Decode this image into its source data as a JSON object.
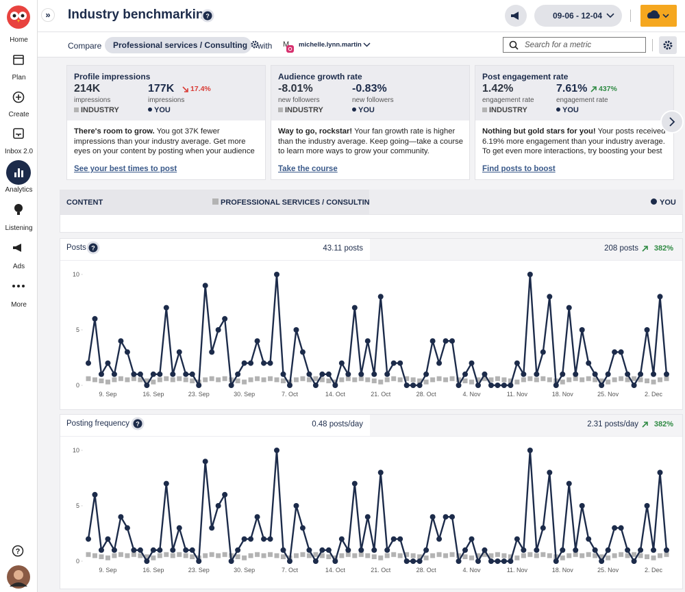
{
  "sidebar": {
    "items": [
      "Home",
      "Plan",
      "Create",
      "Inbox 2.0",
      "Analytics",
      "Listening",
      "Ads",
      "More"
    ]
  },
  "header": {
    "title": "Industry benchmarking",
    "date_range": "09-06 - 12-04"
  },
  "toolbar": {
    "compare": "Compare",
    "industry": "Professional services / Consulting",
    "with": "with",
    "account_initial": "M",
    "account": "michelle.lynn.martin",
    "search_placeholder": "Search for a metric"
  },
  "cards": [
    {
      "title": "Profile impressions",
      "industry_value": "214K",
      "industry_unit": "impressions",
      "industry_label": "INDUSTRY",
      "you_value": "177K",
      "you_change": "17.4%",
      "you_unit": "impressions",
      "you_label": "YOU",
      "body_bold": "There's room to grow.",
      "body": "You got 37K fewer impressions than your industry average. Get more eyes on your content by posting when your audience is online.",
      "link": "See your best times to post"
    },
    {
      "title": "Audience growth rate",
      "industry_value": "-8.01%",
      "industry_unit": "new followers",
      "industry_label": "INDUSTRY",
      "you_value": "-0.83%",
      "you_change": null,
      "you_unit": "new followers",
      "you_label": "YOU",
      "body_bold": "Way to go, rockstar!",
      "body": "Your fan growth rate is higher than the industry average. Keep going—take a course to learn more ways to grow your community.",
      "link": "Take the course"
    },
    {
      "title": "Post engagement rate",
      "industry_value": "1.42%",
      "industry_unit": "engagement rate",
      "industry_label": "INDUSTRY",
      "you_value": "7.61%",
      "you_change": "437%",
      "you_unit": "engagement rate",
      "you_label": "YOU",
      "body_bold": "Nothing but gold stars for you!",
      "body": "Your posts received 6.19% more engagement than your industry average. To get even more interactions, try boosting your best posts.",
      "link": "Find posts to boost"
    }
  ],
  "content_bar": {
    "content": "CONTENT",
    "industry": "PROFESSIONAL SERVICES / CONSULTING",
    "you": "YOU"
  },
  "charts": [
    {
      "type": "line",
      "title": "Posts",
      "industry_total": "43.11 posts",
      "you_total": "208 posts",
      "you_change": "382%",
      "categories": [
        null,
        null,
        null,
        "9. Sep",
        null,
        null,
        null,
        null,
        null,
        null,
        "16. Sep",
        null,
        null,
        null,
        null,
        null,
        null,
        "23. Sep",
        null,
        null,
        null,
        null,
        null,
        null,
        "30. Sep",
        null,
        null,
        null,
        null,
        null,
        null,
        "7. Oct",
        null,
        null,
        null,
        null,
        null,
        null,
        "14. Oct",
        null,
        null,
        null,
        null,
        null,
        null,
        "21. Oct",
        null,
        null,
        null,
        null,
        null,
        null,
        "28. Oct",
        null,
        null,
        null,
        null,
        null,
        null,
        "4. Nov",
        null,
        null,
        null,
        null,
        null,
        null,
        "11. Nov",
        null,
        null,
        null,
        null,
        null,
        null,
        "18. Nov",
        null,
        null,
        null,
        null,
        null,
        null,
        "25. Nov",
        null,
        null,
        null,
        null,
        null,
        null,
        "2. Dec",
        null,
        null
      ],
      "series": [
        {
          "color": "#b3b3b3",
          "values": [
            0.6,
            0.5,
            0.4,
            0.3,
            0.5,
            0.6,
            0.5,
            0.6,
            0.5,
            0.4,
            0.3,
            0.5,
            0.6,
            0.5,
            0.6,
            0.5,
            0.4,
            0.3,
            0.5,
            0.6,
            0.5,
            0.6,
            0.5,
            0.4,
            0.3,
            0.5,
            0.6,
            0.5,
            0.6,
            0.5,
            0.4,
            0.3,
            0.5,
            0.6,
            0.5,
            0.6,
            0.5,
            0.4,
            0.3,
            0.5,
            0.6,
            0.5,
            0.6,
            0.5,
            0.4,
            0.3,
            0.5,
            0.6,
            0.5,
            0.6,
            0.5,
            0.4,
            0.3,
            0.5,
            0.6,
            0.5,
            0.6,
            0.5,
            0.4,
            0.3,
            0.5,
            0.6,
            0.5,
            0.6,
            0.5,
            0.4,
            0.3,
            0.5,
            0.6,
            0.5,
            0.6,
            0.5,
            0.4,
            0.3,
            0.5,
            0.6,
            0.5,
            0.6,
            0.5,
            0.4,
            0.3,
            0.5,
            0.6,
            0.5,
            0.6,
            0.5,
            0.4,
            0.3,
            0.5,
            0.6
          ]
        },
        {
          "color": "#1c2b4a",
          "values": [
            2,
            6,
            1,
            2,
            1,
            4,
            3,
            1,
            1,
            0,
            1,
            1,
            7,
            1,
            3,
            1,
            1,
            0,
            9,
            3,
            5,
            6,
            0,
            1,
            2,
            2,
            4,
            2,
            2,
            10,
            1,
            0,
            5,
            3,
            1,
            0,
            1,
            1,
            0,
            2,
            1,
            7,
            1,
            4,
            1,
            8,
            1,
            2,
            2,
            0,
            0,
            0,
            1,
            4,
            2,
            4,
            4,
            0,
            1,
            2,
            0,
            1,
            0,
            0,
            0,
            0,
            2,
            1,
            10,
            1,
            3,
            8,
            0,
            1,
            7,
            1,
            5,
            2,
            1,
            0,
            1,
            3,
            3,
            1,
            0,
            1,
            5,
            1,
            8,
            1
          ]
        }
      ],
      "ylim": [
        0,
        10
      ],
      "yticks": [
        0,
        5,
        10
      ]
    },
    {
      "type": "line",
      "title": "Posting frequency",
      "industry_total": "0.48 posts/day",
      "you_total": "2.31 posts/day",
      "you_change": "382%",
      "categories": [
        null,
        null,
        null,
        "9. Sep",
        null,
        null,
        null,
        null,
        null,
        null,
        "16. Sep",
        null,
        null,
        null,
        null,
        null,
        null,
        "23. Sep",
        null,
        null,
        null,
        null,
        null,
        null,
        "30. Sep",
        null,
        null,
        null,
        null,
        null,
        null,
        "7. Oct",
        null,
        null,
        null,
        null,
        null,
        null,
        "14. Oct",
        null,
        null,
        null,
        null,
        null,
        null,
        "21. Oct",
        null,
        null,
        null,
        null,
        null,
        null,
        "28. Oct",
        null,
        null,
        null,
        null,
        null,
        null,
        "4. Nov",
        null,
        null,
        null,
        null,
        null,
        null,
        "11. Nov",
        null,
        null,
        null,
        null,
        null,
        null,
        "18. Nov",
        null,
        null,
        null,
        null,
        null,
        null,
        "25. Nov",
        null,
        null,
        null,
        null,
        null,
        null,
        "2. Dec",
        null,
        null
      ],
      "series": [
        {
          "color": "#b3b3b3",
          "values": [
            0.6,
            0.5,
            0.4,
            0.3,
            0.5,
            0.6,
            0.5,
            0.6,
            0.5,
            0.4,
            0.3,
            0.5,
            0.6,
            0.5,
            0.6,
            0.5,
            0.4,
            0.3,
            0.5,
            0.6,
            0.5,
            0.6,
            0.5,
            0.4,
            0.3,
            0.5,
            0.6,
            0.5,
            0.6,
            0.5,
            0.4,
            0.3,
            0.5,
            0.6,
            0.5,
            0.6,
            0.5,
            0.4,
            0.3,
            0.5,
            0.6,
            0.5,
            0.6,
            0.5,
            0.4,
            0.3,
            0.5,
            0.6,
            0.5,
            0.6,
            0.5,
            0.4,
            0.3,
            0.5,
            0.6,
            0.5,
            0.6,
            0.5,
            0.4,
            0.3,
            0.5,
            0.6,
            0.5,
            0.6,
            0.5,
            0.4,
            0.3,
            0.5,
            0.6,
            0.5,
            0.6,
            0.5,
            0.4,
            0.3,
            0.5,
            0.6,
            0.5,
            0.6,
            0.5,
            0.4,
            0.3,
            0.5,
            0.6,
            0.5,
            0.6,
            0.5,
            0.4,
            0.3,
            0.5,
            0.6
          ]
        },
        {
          "color": "#1c2b4a",
          "values": [
            2,
            6,
            1,
            2,
            1,
            4,
            3,
            1,
            1,
            0,
            1,
            1,
            7,
            1,
            3,
            1,
            1,
            0,
            9,
            3,
            5,
            6,
            0,
            1,
            2,
            2,
            4,
            2,
            2,
            10,
            1,
            0,
            5,
            3,
            1,
            0,
            1,
            1,
            0,
            2,
            1,
            7,
            1,
            4,
            1,
            8,
            1,
            2,
            2,
            0,
            0,
            0,
            1,
            4,
            2,
            4,
            4,
            0,
            1,
            2,
            0,
            1,
            0,
            0,
            0,
            0,
            2,
            1,
            10,
            1,
            3,
            8,
            0,
            1,
            7,
            1,
            5,
            2,
            1,
            0,
            1,
            3,
            3,
            1,
            0,
            1,
            5,
            1,
            8,
            1
          ]
        }
      ],
      "ylim": [
        0,
        10
      ],
      "yticks": [
        0,
        5,
        10
      ]
    }
  ]
}
